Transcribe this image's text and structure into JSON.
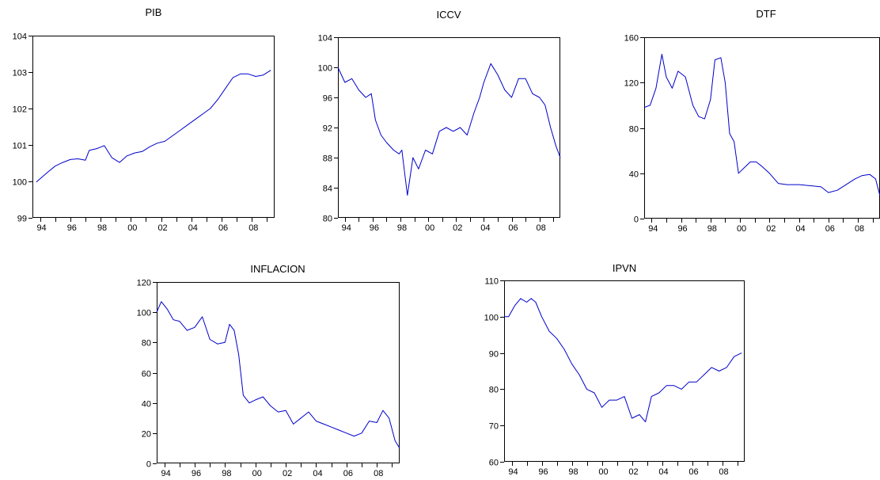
{
  "charts": [
    {
      "type": "line",
      "title": "PIB",
      "x_ticks": [
        "94",
        "96",
        "98",
        "00",
        "02",
        "04",
        "06",
        "08"
      ],
      "ylim": [
        99,
        104
      ],
      "y_ticks": [
        99,
        100,
        101,
        102,
        103,
        104
      ],
      "x": [
        1993.75,
        1994.5,
        1995.0,
        1995.5,
        1996.0,
        1996.5,
        1997.0,
        1997.25,
        1997.75,
        1998.25,
        1998.75,
        1999.25,
        1999.75,
        2000.25,
        2000.75,
        2001.25,
        2001.75,
        2002.25,
        2002.75,
        2003.25,
        2003.75,
        2004.25,
        2004.75,
        2005.25,
        2005.75,
        2006.25,
        2006.75,
        2007.25,
        2007.75,
        2008.25,
        2008.75,
        2009.25
      ],
      "series": [
        {
          "values": [
            99.98,
            100.25,
            100.42,
            100.52,
            100.6,
            100.62,
            100.58,
            100.85,
            100.9,
            100.98,
            100.65,
            100.52,
            100.7,
            100.78,
            100.82,
            100.95,
            101.05,
            101.1,
            101.25,
            101.4,
            101.55,
            101.7,
            101.85,
            102.0,
            102.25,
            102.55,
            102.85,
            102.95,
            102.95,
            102.88,
            102.92,
            103.05
          ]
        }
      ]
    },
    {
      "type": "line",
      "title": "ICCV",
      "x_ticks": [
        "94",
        "96",
        "98",
        "00",
        "02",
        "04",
        "06",
        "08"
      ],
      "ylim": [
        80,
        104
      ],
      "y_ticks": [
        80,
        84,
        88,
        92,
        96,
        100,
        104
      ],
      "x": [
        1993.5,
        1994.0,
        1994.5,
        1995.0,
        1995.5,
        1995.9,
        1996.2,
        1996.6,
        1997.0,
        1997.5,
        1997.9,
        1998.1,
        1998.5,
        1998.9,
        1999.3,
        1999.8,
        2000.3,
        2000.8,
        2001.3,
        2001.8,
        2002.3,
        2002.8,
        2003.3,
        2003.7,
        2004.0,
        2004.5,
        2005.0,
        2005.5,
        2006.0,
        2006.5,
        2007.0,
        2007.5,
        2008.0,
        2008.4,
        2008.8,
        2009.2,
        2009.5
      ],
      "series": [
        {
          "values": [
            100.0,
            98.0,
            98.5,
            97.0,
            96.0,
            96.5,
            93.0,
            91.0,
            90.0,
            89.0,
            88.5,
            89.0,
            83.0,
            88.0,
            86.5,
            89.0,
            88.5,
            91.5,
            92.0,
            91.5,
            92.0,
            91.0,
            94.0,
            96.0,
            98.0,
            100.5,
            99.0,
            97.0,
            96.0,
            98.5,
            98.5,
            96.5,
            96.0,
            95.0,
            92.0,
            89.5,
            88.0
          ]
        }
      ]
    },
    {
      "type": "line",
      "title": "DTF",
      "x_ticks": [
        "94",
        "96",
        "98",
        "00",
        "02",
        "04",
        "06",
        "08"
      ],
      "ylim": [
        0,
        160
      ],
      "y_ticks": [
        0,
        40,
        80,
        120,
        160
      ],
      "x": [
        1993.5,
        1993.9,
        1994.3,
        1994.7,
        1995.0,
        1995.4,
        1995.8,
        1996.3,
        1996.8,
        1997.2,
        1997.6,
        1998.0,
        1998.3,
        1998.7,
        1999.0,
        1999.3,
        1999.6,
        1999.9,
        2000.3,
        2000.7,
        2001.1,
        2001.5,
        2002.0,
        2002.6,
        2003.2,
        2004.0,
        2004.8,
        2005.5,
        2006.0,
        2006.6,
        2007.2,
        2007.8,
        2008.3,
        2008.8,
        2009.2,
        2009.5
      ],
      "series": [
        {
          "values": [
            98,
            100,
            115,
            145,
            125,
            115,
            130,
            125,
            100,
            90,
            88,
            105,
            140,
            142,
            120,
            75,
            68,
            40,
            45,
            50,
            50,
            46,
            40,
            31,
            30,
            30,
            29,
            28,
            23,
            25,
            30,
            35,
            38,
            39,
            35,
            20
          ]
        }
      ]
    },
    {
      "type": "line",
      "title": "INFLACION",
      "x_ticks": [
        "94",
        "96",
        "98",
        "00",
        "02",
        "04",
        "06",
        "08"
      ],
      "ylim": [
        0,
        120
      ],
      "y_ticks": [
        0,
        20,
        40,
        60,
        80,
        100,
        120
      ],
      "x": [
        1993.5,
        1993.8,
        1994.2,
        1994.6,
        1995.0,
        1995.5,
        1996.0,
        1996.5,
        1997.0,
        1997.5,
        1998.0,
        1998.3,
        1998.6,
        1998.9,
        1999.2,
        1999.6,
        2000.0,
        2000.5,
        2001.0,
        2001.5,
        2002.0,
        2002.5,
        2003.0,
        2003.5,
        2004.0,
        2004.5,
        2005.0,
        2005.5,
        2006.0,
        2006.5,
        2007.0,
        2007.5,
        2008.0,
        2008.4,
        2008.8,
        2009.2,
        2009.5
      ],
      "series": [
        {
          "values": [
            100,
            107,
            102,
            95,
            94,
            88,
            90,
            97,
            82,
            79,
            80,
            92,
            88,
            72,
            45,
            40,
            42,
            44,
            38,
            34,
            35,
            26,
            30,
            34,
            28,
            26,
            24,
            22,
            20,
            18,
            20,
            28,
            27,
            35,
            30,
            15,
            10
          ]
        }
      ]
    },
    {
      "type": "line",
      "title": "IPVN",
      "x_ticks": [
        "94",
        "96",
        "98",
        "00",
        "02",
        "04",
        "06",
        "08"
      ],
      "ylim": [
        60,
        110
      ],
      "y_ticks": [
        60,
        70,
        80,
        90,
        100,
        110
      ],
      "x": [
        1993.5,
        1993.8,
        1994.2,
        1994.6,
        1995.0,
        1995.3,
        1995.6,
        1996.0,
        1996.5,
        1997.0,
        1997.5,
        1998.0,
        1998.5,
        1999.0,
        1999.5,
        2000.0,
        2000.5,
        2001.0,
        2001.5,
        2002.0,
        2002.5,
        2002.9,
        2003.3,
        2003.8,
        2004.3,
        2004.8,
        2005.3,
        2005.8,
        2006.3,
        2006.8,
        2007.3,
        2007.8,
        2008.3,
        2008.8,
        2009.3
      ],
      "series": [
        {
          "values": [
            100,
            100,
            103,
            105,
            104,
            105,
            104,
            100,
            96,
            94,
            91,
            87,
            84,
            80,
            79,
            75,
            77,
            77,
            78,
            72,
            73,
            71,
            78,
            79,
            81,
            81,
            80,
            82,
            82,
            84,
            86,
            85,
            86,
            89,
            90
          ]
        }
      ]
    }
  ],
  "style": {
    "line_color": "#0000cc",
    "axis_color": "#000000",
    "background": "#ffffff",
    "x_domain": [
      1993.5,
      2009.5
    ]
  }
}
